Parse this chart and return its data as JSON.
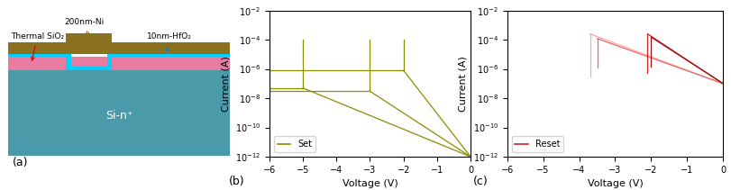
{
  "fig_width": 8.12,
  "fig_height": 2.11,
  "dpi": 100,
  "panel_a": {
    "label": "(a)",
    "si_color": "#4a9aaa",
    "sio2_color": "#e87ca0",
    "hfo2_color": "#00d0ff",
    "ni_color": "#8b7020",
    "si_text": "Si-n⁺",
    "thermal_label": "Thermal SiO₂",
    "ni_label": "200nm-Ni",
    "hfo2_label": "10nm-HfO₂"
  },
  "panel_b": {
    "label": "(b)",
    "xlabel": "Voltage (V)",
    "ylabel": "Current (A)",
    "xlim": [
      -6,
      0
    ],
    "ylim_log": [
      -12,
      -2
    ],
    "legend_label": "Set",
    "line_color": "#8c8c00",
    "xticks": [
      -6,
      -5,
      -4,
      -3,
      -2,
      -1,
      0
    ]
  },
  "panel_c": {
    "label": "(c)",
    "xlabel": "Voltage (V)",
    "ylabel": "Current (A)",
    "xlim": [
      -6,
      0
    ],
    "ylim_log": [
      -12,
      -2
    ],
    "legend_label": "Reset",
    "line_color": "#cc2222",
    "xticks": [
      -6,
      -5,
      -4,
      -3,
      -2,
      -1,
      0
    ]
  }
}
